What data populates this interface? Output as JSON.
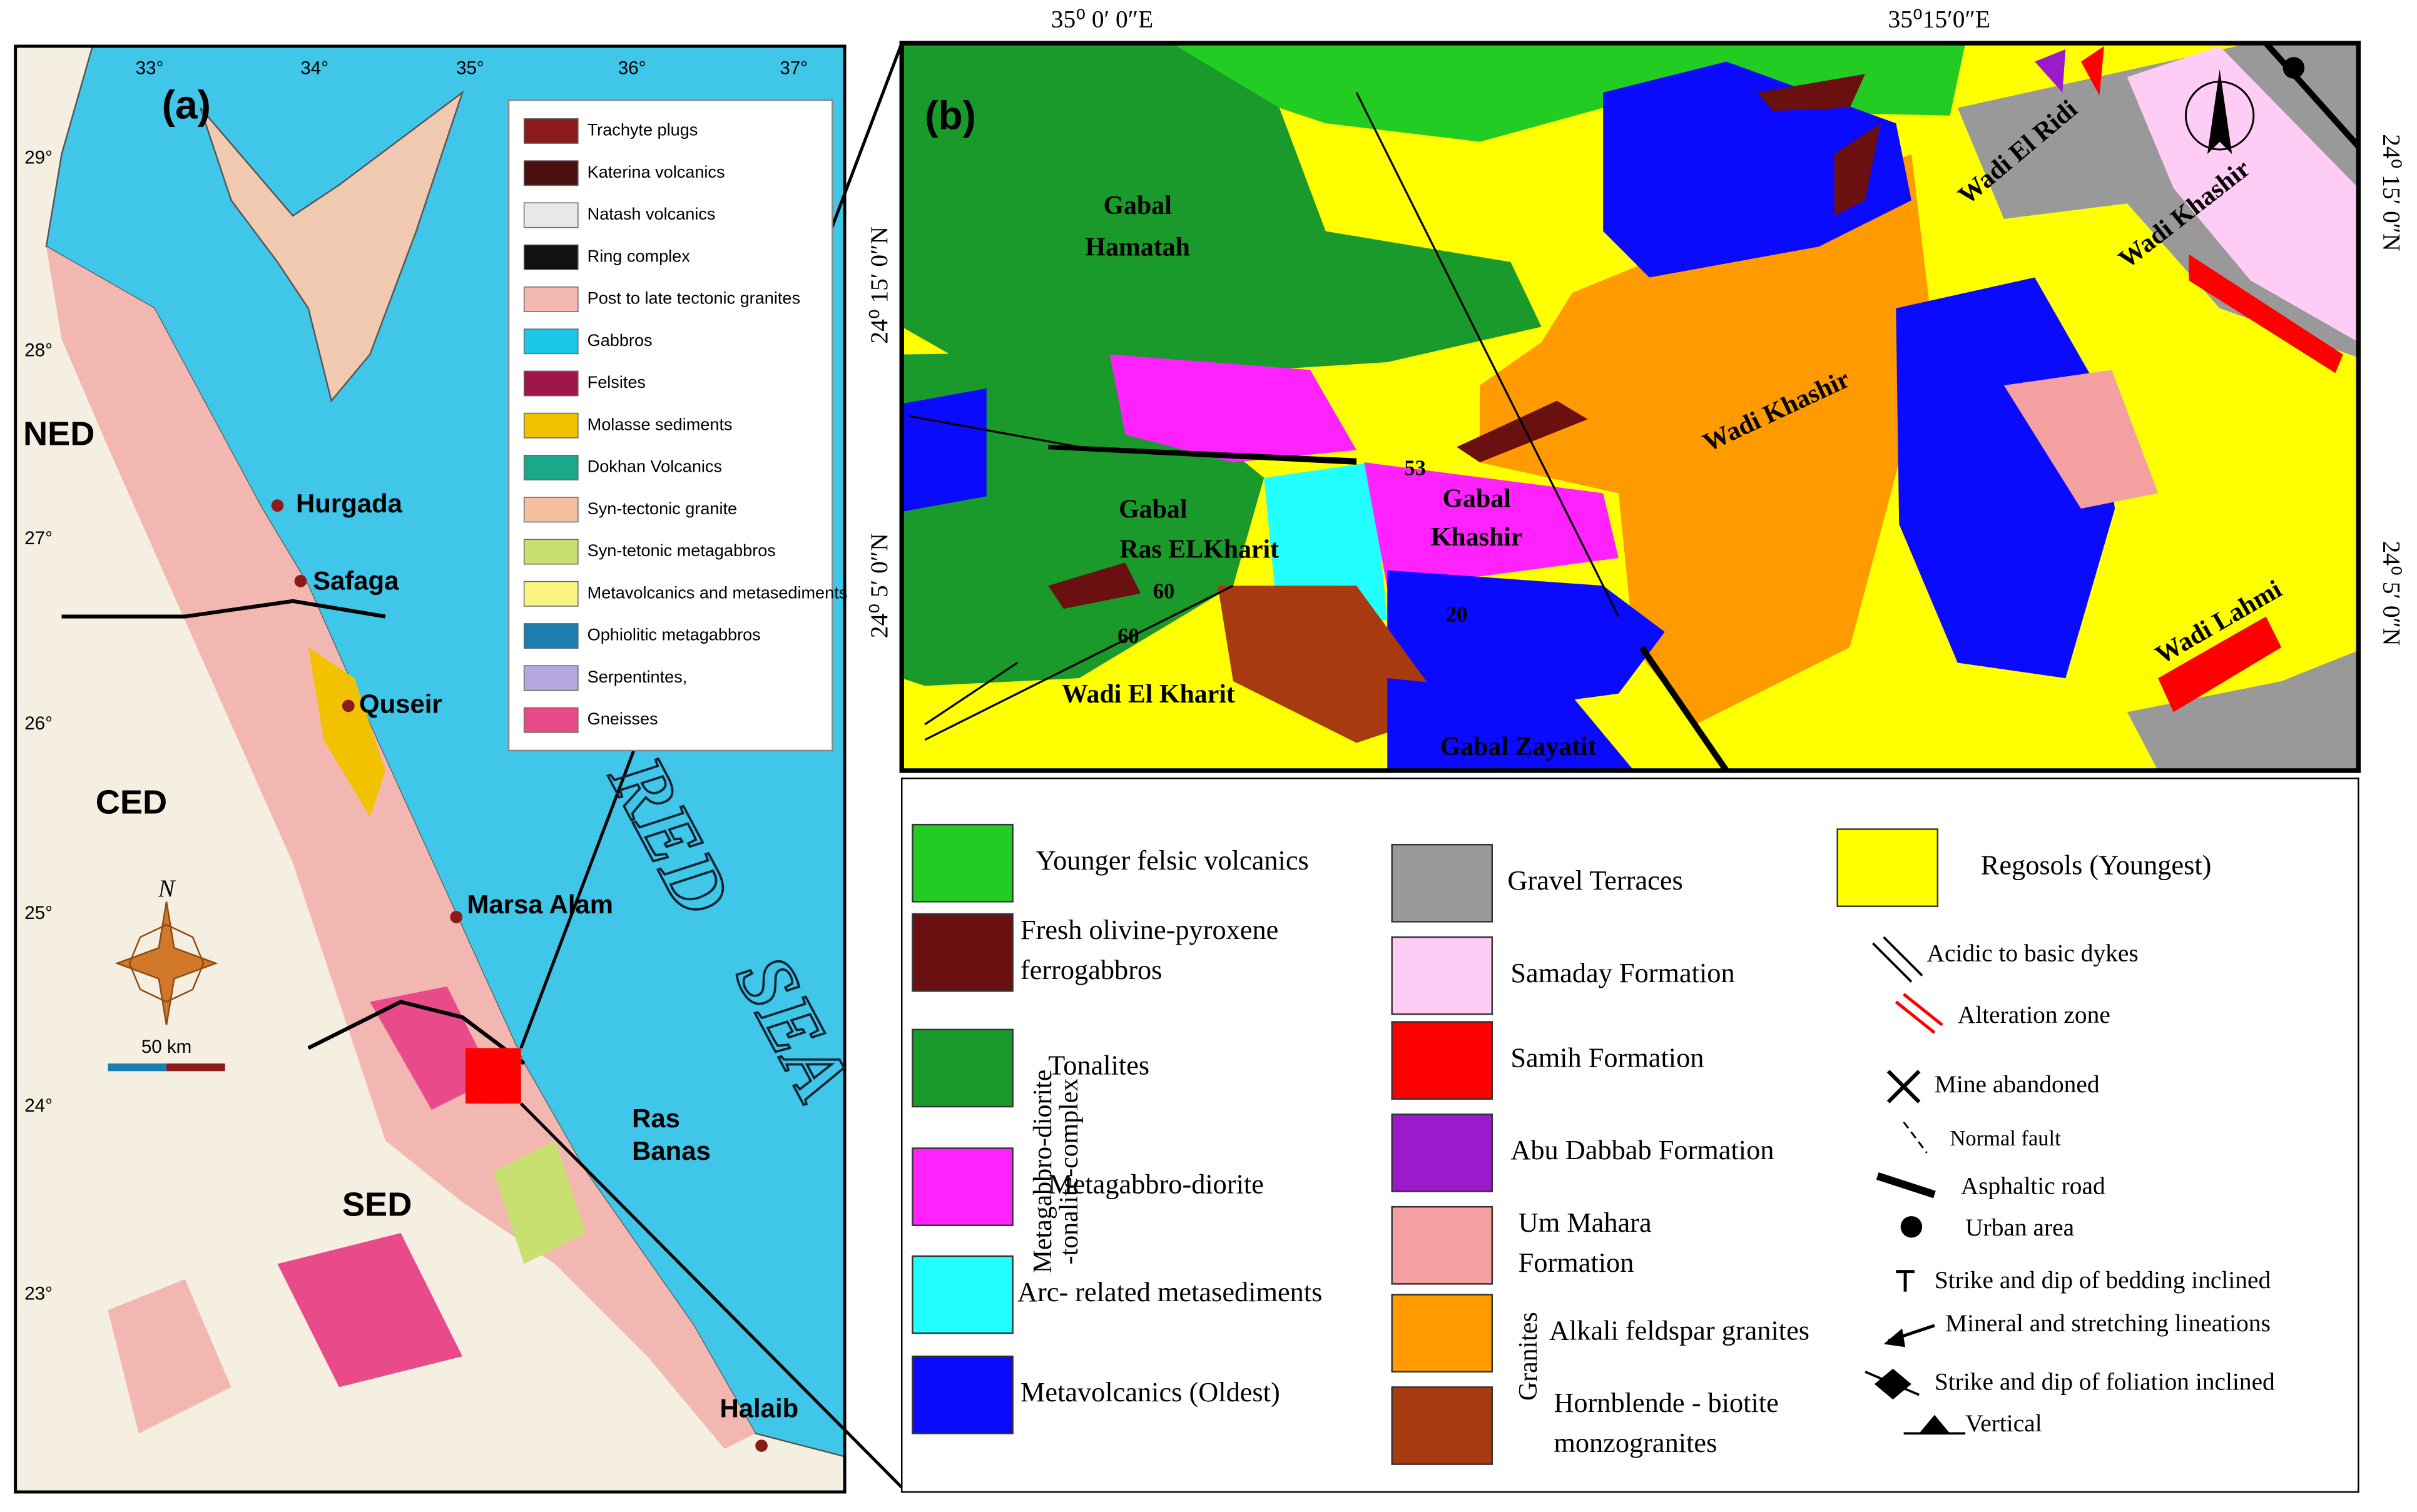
{
  "panel_a": {
    "label": "(a)",
    "lon_ticks": [
      "33°",
      "34°",
      "35°",
      "36°",
      "37°"
    ],
    "lat_ticks": [
      "29°",
      "28°",
      "27°",
      "26°",
      "25°",
      "24°",
      "23°"
    ],
    "regions": [
      "NED",
      "CED",
      "SED"
    ],
    "towns": [
      "Hurgada",
      "Safaga",
      "Quseir",
      "Marsa Alam",
      "Ras",
      "Banas",
      "Halaib"
    ],
    "sea": [
      "RED",
      "SEA"
    ],
    "north": "N",
    "scale": "50 km",
    "legend": [
      {
        "label": "Trachyte plugs",
        "color": "#8b1a1a"
      },
      {
        "label": "Katerina volcanics",
        "color": "#4a1010"
      },
      {
        "label": "Natash volcanics",
        "color": "#e8e8e8"
      },
      {
        "label": "Ring complex",
        "color": "#111111"
      },
      {
        "label": "Post to late tectonic granites",
        "color": "#f4b8b0"
      },
      {
        "label": "Gabbros",
        "color": "#19c8e8"
      },
      {
        "label": "Felsites",
        "color": "#a0154a"
      },
      {
        "label": "Molasse sediments",
        "color": "#f2c200"
      },
      {
        "label": "Dokhan Volcanics",
        "color": "#1aa88a"
      },
      {
        "label": "Syn-tectonic granite",
        "color": "#f5c0a0"
      },
      {
        "label": "Syn-tetonic metagabbros",
        "color": "#c8e070"
      },
      {
        "label": "Metavolcanics and metasediments",
        "color": "#f8f480"
      },
      {
        "label": "Ophiolitic metagabbros",
        "color": "#1a7fb0"
      },
      {
        "label": "Serpentintes,",
        "color": "#b8a8e0"
      },
      {
        "label": "Gneisses",
        "color": "#e84a8a"
      }
    ]
  },
  "panel_b": {
    "label": "(b)",
    "lon_ticks": [
      "35⁰ 0′ 0″E",
      "35⁰15′0″E"
    ],
    "lat_ticks_left": [
      "24⁰ 15′ 0″N",
      "24⁰ 5′ 0″N"
    ],
    "lat_ticks_right": [
      "24⁰ 15′ 0″N",
      "24⁰ 5′ 0″N"
    ],
    "places": [
      "Gabal",
      "Hamatah",
      "Wadi El Ridi",
      "Wadi Khashir",
      "Wadi Khashir",
      "Gabal",
      "Ras ELKharit",
      "Gabal",
      "Khashir",
      "Wadi  El Kharit",
      "Gabal Zayatit",
      "Wadi Lahmi",
      "60",
      "53",
      "60",
      "20"
    ],
    "group_labels": [
      "Metagabbro-diorite",
      "-tonalite-complex",
      "Granites"
    ],
    "units": [
      {
        "lines": [
          "Younger felsic volcanics"
        ],
        "color": "#22cc22"
      },
      {
        "lines": [
          "Fresh olivine-pyroxene",
          "ferrogabbros"
        ],
        "color": "#6b1010"
      },
      {
        "lines": [
          "Tonalites"
        ],
        "color": "#1a9a2a"
      },
      {
        "lines": [
          "Metagabbro-diorite"
        ],
        "color": "#ff22ff"
      },
      {
        "lines": [
          "Arc- related metasediments"
        ],
        "color": "#22ffff"
      },
      {
        "lines": [
          "Metavolcanics (Oldest)"
        ],
        "color": "#0a0aff"
      },
      {
        "lines": [
          "Gravel Terraces"
        ],
        "color": "#999999"
      },
      {
        "lines": [
          "Samaday Formation"
        ],
        "color": "#ffccf5"
      },
      {
        "lines": [
          "Samih Formation"
        ],
        "color": "#ff0000"
      },
      {
        "lines": [
          "Abu Dabbab Formation"
        ],
        "color": "#9a1acc"
      },
      {
        "lines": [
          "Um Mahara",
          "Formation"
        ],
        "color": "#f5a0a0"
      },
      {
        "lines": [
          "Alkali feldspar granites"
        ],
        "color": "#ff9a00"
      },
      {
        "lines": [
          "Hornblende - biotite",
          "monzogranites"
        ],
        "color": "#a83a10"
      },
      {
        "lines": [
          "Regosols (Youngest)"
        ],
        "color": "#ffff00"
      }
    ],
    "symbols": [
      "Acidic to basic dykes",
      "Alteration zone",
      "Mine abandoned",
      "Normal fault",
      "Asphaltic road",
      "Urban area",
      "Strike and dip of bedding inclined",
      "Mineral and stretching lineations",
      "Strike and dip of foliation inclined",
      "Vertical"
    ]
  }
}
